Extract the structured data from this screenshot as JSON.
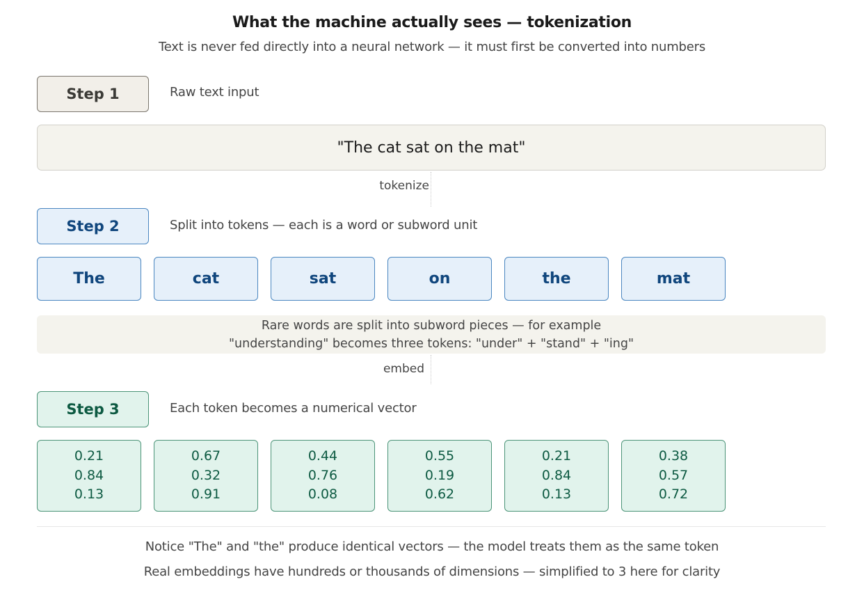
{
  "header": {
    "title": "What the machine actually sees — tokenization",
    "subtitle": "Text is never fed directly into a neural network — it must first be converted into numbers"
  },
  "steps": [
    {
      "label": "Step 1",
      "description": "Raw text input",
      "color": "#f2efe9"
    },
    {
      "label": "Step 2",
      "description": "Split into tokens — each is a word or subword unit",
      "color": "#e6f0fa"
    },
    {
      "label": "Step 3",
      "description": "Each token becomes a numerical vector",
      "color": "#e1f3ec"
    }
  ],
  "raw_text": "\"The cat sat on the mat\"",
  "connectors": {
    "tokenize": "tokenize",
    "embed": "embed"
  },
  "tokens": [
    "The",
    "cat",
    "sat",
    "on",
    "the",
    "mat"
  ],
  "note": {
    "line1": "Rare words are split into subword pieces — for example",
    "line2": "\"understanding\" becomes three tokens: \"under\" + \"stand\" + \"ing\""
  },
  "vectors": [
    [
      "0.21",
      "0.84",
      "0.13"
    ],
    [
      "0.67",
      "0.32",
      "0.91"
    ],
    [
      "0.44",
      "0.76",
      "0.08"
    ],
    [
      "0.55",
      "0.19",
      "0.62"
    ],
    [
      "0.21",
      "0.84",
      "0.13"
    ],
    [
      "0.38",
      "0.57",
      "0.72"
    ]
  ],
  "footer": {
    "line1": "Notice \"The\" and \"the\" produce identical vectors — the model treats them as the same token",
    "line2": "Real embeddings have hundreds or thousands of dimensions — simplified to 3 here for clarity"
  }
}
